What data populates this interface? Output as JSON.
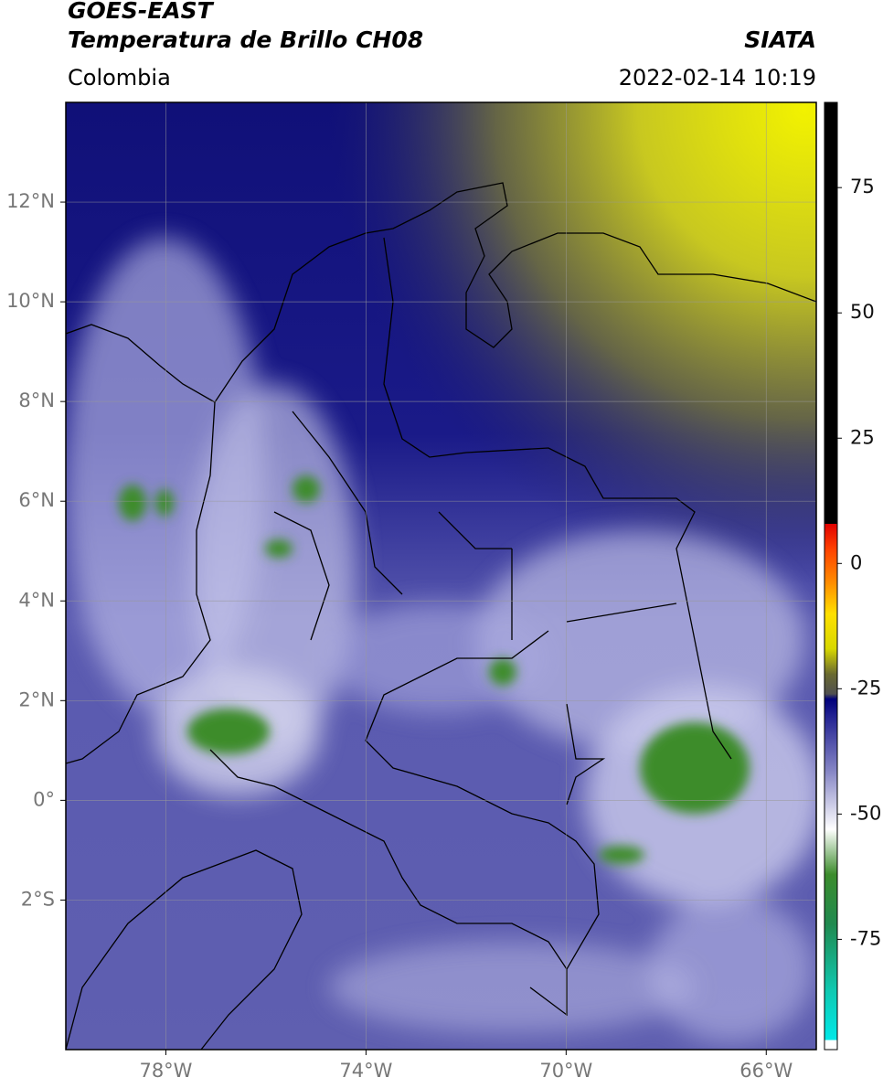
{
  "header": {
    "title": "GOES-EAST",
    "subtitle": "Temperatura de Brillo CH08",
    "source": "SIATA",
    "region": "Colombia",
    "datetime": "2022-02-14 10:19"
  },
  "map": {
    "xlim": [
      -80,
      -65
    ],
    "ylim": [
      -5,
      14
    ],
    "xticks": [
      {
        "value": -78,
        "label": "78°W"
      },
      {
        "value": -74,
        "label": "74°W"
      },
      {
        "value": -70,
        "label": "70°W"
      },
      {
        "value": -66,
        "label": "66°W"
      }
    ],
    "yticks": [
      {
        "value": 12,
        "label": "12°N"
      },
      {
        "value": 10,
        "label": "10°N"
      },
      {
        "value": 8,
        "label": "8°N"
      },
      {
        "value": 6,
        "label": "6°N"
      },
      {
        "value": 4,
        "label": "4°N"
      },
      {
        "value": 2,
        "label": "2°N"
      },
      {
        "value": 0,
        "label": "0°"
      },
      {
        "value": -2,
        "label": "2°S"
      }
    ],
    "grid": true
  },
  "colorbar": {
    "lim": [
      -97,
      92
    ],
    "ticks": [
      75,
      50,
      25,
      0,
      -25,
      -50,
      -75
    ],
    "stops": [
      {
        "value": -97,
        "color": "#ffffff"
      },
      {
        "value": -95,
        "color": "#ffffff"
      },
      {
        "value": -95,
        "color": "#00e8e8"
      },
      {
        "value": -85,
        "color": "#10c8b0"
      },
      {
        "value": -72,
        "color": "#208a50"
      },
      {
        "value": -62,
        "color": "#3c8c2c"
      },
      {
        "value": -53,
        "color": "#ffffff"
      },
      {
        "value": -42,
        "color": "#8c8cc8"
      },
      {
        "value": -30,
        "color": "#1e1e90"
      },
      {
        "value": -27,
        "color": "#00007a"
      },
      {
        "value": -26,
        "color": "#505050"
      },
      {
        "value": -22,
        "color": "#6a6a30"
      },
      {
        "value": -17,
        "color": "#d8d800"
      },
      {
        "value": -10,
        "color": "#ffe000"
      },
      {
        "value": -4,
        "color": "#ff9000"
      },
      {
        "value": 3,
        "color": "#ff4000"
      },
      {
        "value": 8,
        "color": "#e00000"
      },
      {
        "value": 8,
        "color": "#000000"
      },
      {
        "value": 92,
        "color": "#000000"
      }
    ]
  }
}
